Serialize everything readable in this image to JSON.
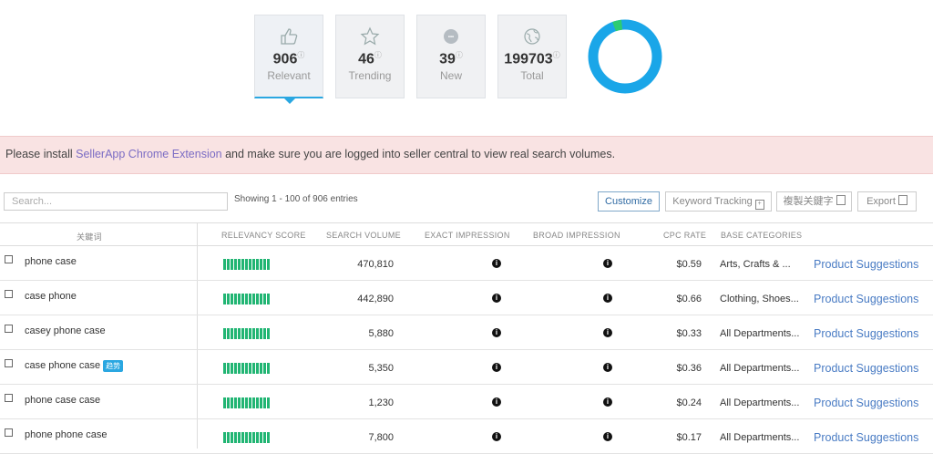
{
  "stats": [
    {
      "icon": "thumbs-up-icon",
      "value": "906",
      "label": "Relevant",
      "active": true
    },
    {
      "icon": "star-icon",
      "value": "46",
      "label": "Trending",
      "active": false
    },
    {
      "icon": "new-icon",
      "value": "39",
      "label": "New",
      "active": false
    },
    {
      "icon": "globe-icon",
      "value": "199703",
      "label": "Total",
      "active": false
    }
  ],
  "donut": {
    "primary_color": "#1aa6e8",
    "accent_color": "#2ecc71",
    "accent_fraction": 0.04
  },
  "alert": {
    "text_before": "Please install ",
    "link_text": "SellerApp Chrome Extension",
    "text_after": " and make sure you are logged into seller central to view real search volumes."
  },
  "toolbar": {
    "search_placeholder": "Search...",
    "showing": "Showing 1 - 100 of 906 entries",
    "customize": "Customize",
    "keyword_tracking": "Keyword Tracking",
    "copy_keywords": "複製关鍵字",
    "export": "Export"
  },
  "columns": {
    "keyword": "关鍵词",
    "relevancy": "RELEVANCY SCORE",
    "search_volume": "SEARCH VOLUME",
    "exact": "EXACT IMPRESSION",
    "broad": "BROAD IMPRESSION",
    "cpc": "CPC RATE",
    "categories": "BASE CATEGORIES"
  },
  "rows": [
    {
      "keyword": "phone case",
      "tag": "",
      "volume": "470,810",
      "cpc": "$0.59",
      "category": "Arts, Crafts & ...",
      "action": "Product Suggestions"
    },
    {
      "keyword": "case phone",
      "tag": "",
      "volume": "442,890",
      "cpc": "$0.66",
      "category": "Clothing, Shoes...",
      "action": "Product Suggestions"
    },
    {
      "keyword": "casey phone case",
      "tag": "",
      "volume": "5,880",
      "cpc": "$0.33",
      "category": "All Departments...",
      "action": "Product Suggestions"
    },
    {
      "keyword": "case phone case",
      "tag": "趋势",
      "volume": "5,350",
      "cpc": "$0.36",
      "category": "All Departments...",
      "action": "Product Suggestions"
    },
    {
      "keyword": "phone case case",
      "tag": "",
      "volume": "1,230",
      "cpc": "$0.24",
      "category": "All Departments...",
      "action": "Product Suggestions"
    },
    {
      "keyword": "phone phone case",
      "tag": "",
      "volume": "7,800",
      "cpc": "$0.17",
      "category": "All Departments...",
      "action": "Product Suggestions"
    }
  ]
}
